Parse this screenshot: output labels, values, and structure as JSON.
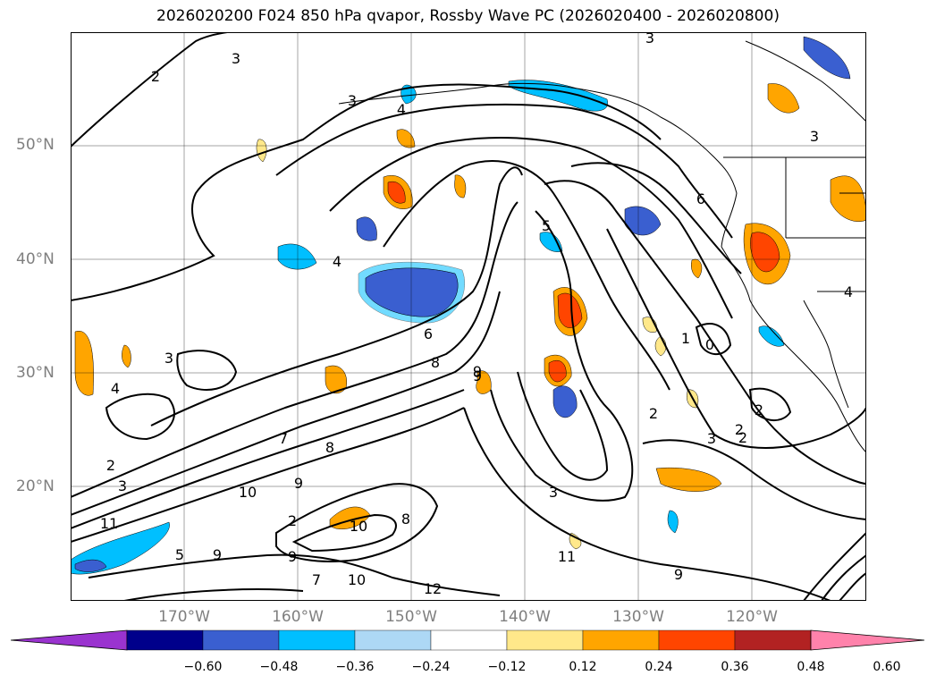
{
  "title": "2026020200 F024 850 hPa qvapor, Rossby Wave PC (2026020400 - 2026020800)",
  "map": {
    "lat_labels": [
      "50°N",
      "40°N",
      "30°N",
      "20°N"
    ],
    "lon_labels": [
      "170°W",
      "160°W",
      "150°W",
      "140°W",
      "130°W",
      "120°W"
    ],
    "contour_labels": [
      "2",
      "3",
      "3",
      "4",
      "3",
      "4",
      "3",
      "6",
      "8",
      "9",
      "7",
      "3",
      "2",
      "10",
      "11",
      "12",
      "11",
      "9",
      "5",
      "9",
      "9",
      "7",
      "10",
      "8",
      "2",
      "9",
      "10",
      "8",
      "3",
      "3",
      "2",
      "2",
      "1",
      "0",
      "6",
      "3",
      "4",
      "4",
      "2",
      "2",
      "5",
      "9"
    ]
  },
  "colorbar": {
    "ticks": [
      "−0.60",
      "−0.48",
      "−0.36",
      "−0.24",
      "−0.12",
      "0.12",
      "0.24",
      "0.36",
      "0.48",
      "0.60"
    ],
    "colors": [
      "#9a33cf",
      "#00008b",
      "#3a5fd0",
      "#00bfff",
      "#add8f5",
      "#ffffff",
      "#ffe88a",
      "#ffa500",
      "#ff4500",
      "#b22222",
      "#ff82ab"
    ]
  }
}
